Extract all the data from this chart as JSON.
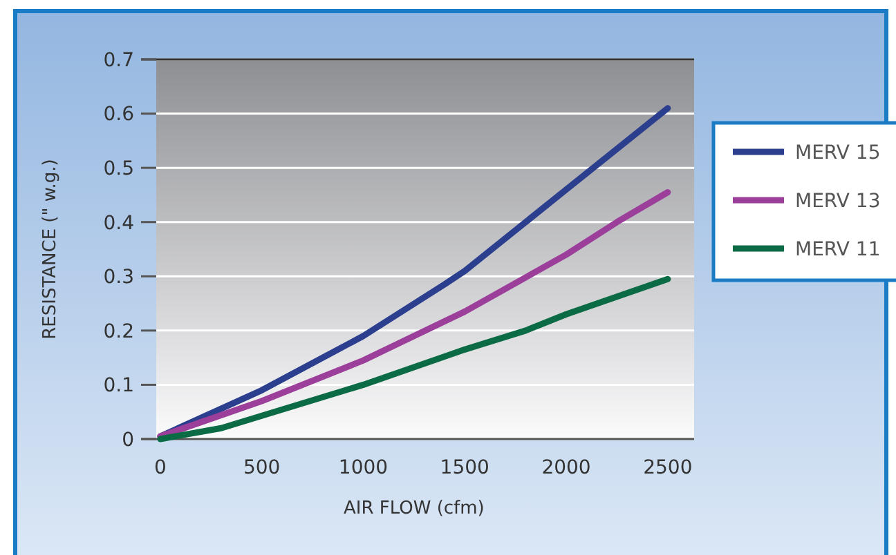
{
  "chart_data": {
    "type": "line",
    "xlabel": "AIR FLOW (cfm)",
    "ylabel": "RESISTANCE (\" w.g.)",
    "xlim": [
      -20,
      2630
    ],
    "xticks": [
      0,
      500,
      1000,
      1500,
      2000,
      2500
    ],
    "ylim": [
      0,
      0.7
    ],
    "yticks": [
      0,
      0.1,
      0.2,
      0.3,
      0.4,
      0.5,
      0.6,
      0.7
    ],
    "grid": "y",
    "legend": "right",
    "line_style": "solid",
    "marker": "none",
    "series": [
      {
        "name": "MERV 15",
        "color": "#2b3f8e",
        "x": [
          0,
          500,
          1000,
          1400,
          1500,
          2000,
          2500
        ],
        "values": [
          0.005,
          0.09,
          0.19,
          0.285,
          0.31,
          0.46,
          0.61
        ]
      },
      {
        "name": "MERV 13",
        "color": "#9b3f9b",
        "x": [
          0,
          500,
          1000,
          1500,
          2000,
          2250,
          2500
        ],
        "values": [
          0.005,
          0.07,
          0.145,
          0.235,
          0.34,
          0.4,
          0.455
        ]
      },
      {
        "name": "MERV 11",
        "color": "#0b6b45",
        "x": [
          0,
          300,
          1000,
          1500,
          1800,
          2000,
          2500
        ],
        "values": [
          0,
          0.02,
          0.1,
          0.165,
          0.2,
          0.23,
          0.295
        ]
      }
    ]
  }
}
